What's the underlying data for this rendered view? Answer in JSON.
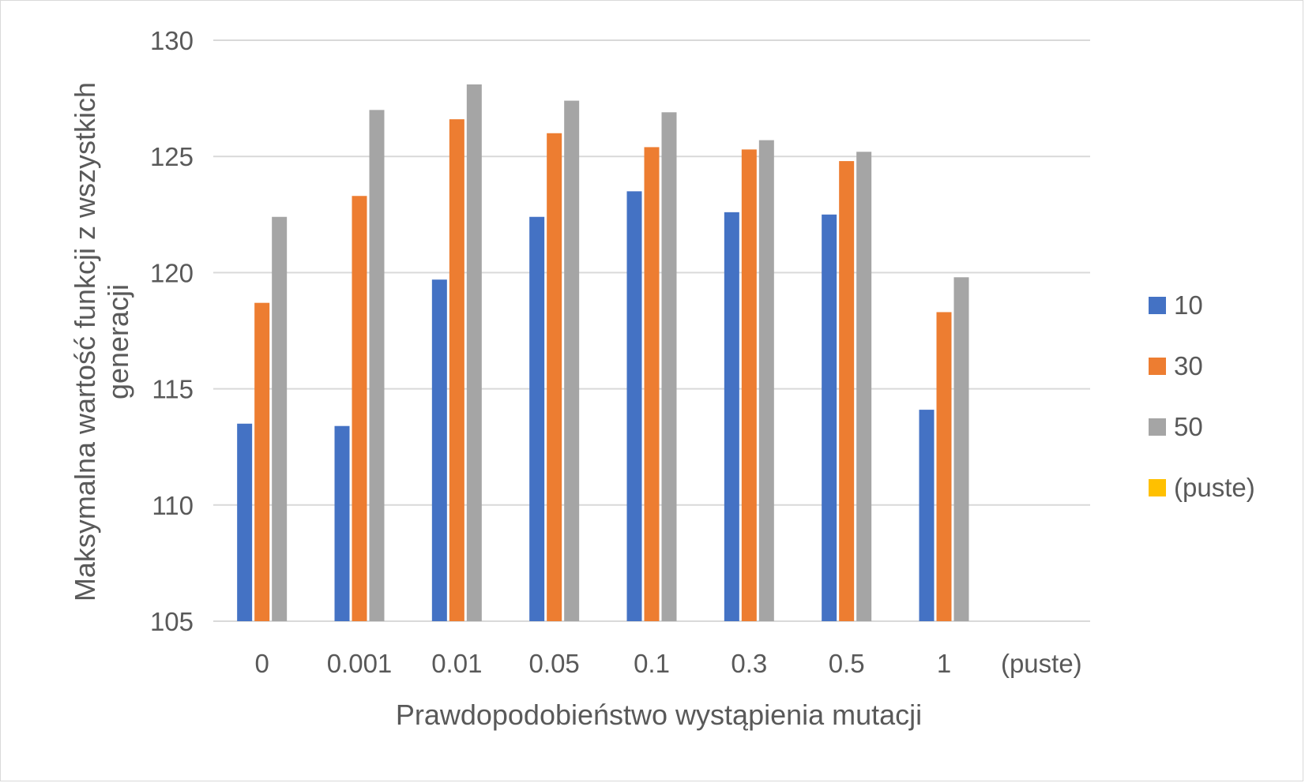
{
  "chart_data": {
    "type": "bar",
    "title": "",
    "xlabel": "Prawdopodobieństwo wystąpienia mutacji",
    "ylabel": [
      "Maksymalna wartość funkcji z wszystkich",
      "generacji"
    ],
    "ylim": [
      105,
      130
    ],
    "yticks": [
      "105",
      "110",
      "115",
      "120",
      "125",
      "130"
    ],
    "grid": true,
    "legend_position": "right",
    "categories": [
      "0",
      "0.001",
      "0.01",
      "0.05",
      "0.1",
      "0.3",
      "0.5",
      "1",
      "(puste)"
    ],
    "series": [
      {
        "name": "10",
        "color": "#4472C4",
        "values": [
          113.5,
          113.4,
          119.7,
          122.4,
          123.5,
          122.6,
          122.5,
          114.1,
          null
        ]
      },
      {
        "name": "30",
        "color": "#ED7D31",
        "values": [
          118.7,
          123.3,
          126.6,
          126.0,
          125.4,
          125.3,
          124.8,
          118.3,
          null
        ]
      },
      {
        "name": "50",
        "color": "#A5A5A5",
        "values": [
          122.4,
          127.0,
          128.1,
          127.4,
          126.9,
          125.7,
          125.2,
          119.8,
          null
        ]
      },
      {
        "name": "(puste)",
        "color": "#FFC000",
        "values": [
          null,
          null,
          null,
          null,
          null,
          null,
          null,
          null,
          null
        ]
      }
    ]
  }
}
